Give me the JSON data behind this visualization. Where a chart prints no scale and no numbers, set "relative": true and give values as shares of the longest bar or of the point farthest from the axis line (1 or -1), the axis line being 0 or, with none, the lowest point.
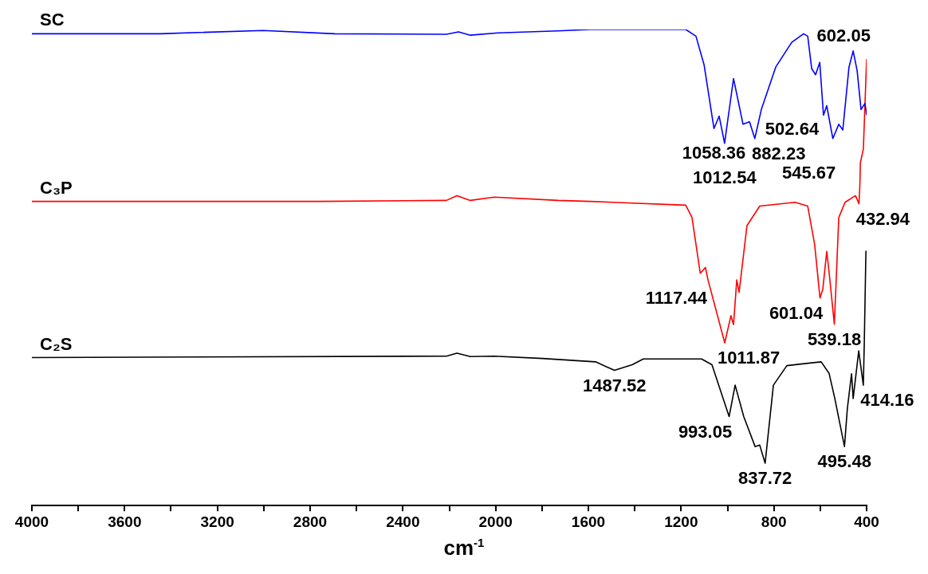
{
  "chart_data": {
    "type": "line",
    "relative": true,
    "xlabel": "cm$^{-1}$",
    "xlim": [
      4000,
      400
    ],
    "xticks": [
      4000,
      {
        "value": 3800,
        "label": null
      },
      3600,
      {
        "value": 3400,
        "label": null
      },
      3200,
      {
        "value": 3000,
        "label": null
      },
      2800,
      {
        "value": 2600,
        "label": null
      },
      2400,
      {
        "value": 2200,
        "label": null
      },
      2000,
      {
        "value": 1800,
        "label": null
      },
      1600,
      {
        "value": 1400,
        "label": null
      },
      1200,
      {
        "value": 1000,
        "label": null
      },
      800,
      {
        "value": 600,
        "label": null
      },
      400
    ],
    "grid": false,
    "legend": false,
    "marker": "none",
    "line_style": "solid",
    "series": [
      {
        "name": "SC",
        "color": "#0000ff",
        "x": [
          4000,
          3450,
          3003,
          2693,
          2212,
          2160,
          2109,
          1989,
          1731,
          1593,
          1180,
          1136,
          1101,
          1058.36,
          1036,
          1012.54,
          974,
          933,
          905,
          882.23,
          854,
          792,
          723,
          672,
          654,
          637,
          620,
          602.05,
          586,
          572,
          545.67,
          520,
          502.64,
          476,
          458,
          441,
          424,
          407,
          400
        ],
        "values": [
          0.991,
          0.991,
          0.998,
          0.991,
          0.99,
          0.995,
          0.988,
          0.993,
          0.997,
          1,
          1,
          0.986,
          0.926,
          0.792,
          0.818,
          0.761,
          0.897,
          0.801,
          0.806,
          0.771,
          0.832,
          0.921,
          0.973,
          0.991,
          0.986,
          0.918,
          0.905,
          0.931,
          0.82,
          0.84,
          0.771,
          0.801,
          0.789,
          0.921,
          0.955,
          0.914,
          0.832,
          0.845,
          0.82
        ]
      },
      {
        "name": "C₃P",
        "color": "#ff0000",
        "x": [
          4000,
          2762,
          2212,
          2167,
          2109,
          2006,
          1731,
          1593,
          1180,
          1153,
          1117.44,
          1095,
          1084,
          1011.87,
          985,
          974,
          960,
          950,
          916,
          861,
          709,
          654,
          624,
          601.04,
          589,
          572,
          562,
          539.18,
          520,
          493,
          448,
          432.94,
          429,
          427,
          414,
          400
        ],
        "values": [
          0.639,
          0.639,
          0.641,
          0.651,
          0.641,
          0.648,
          0.641,
          0.639,
          0.631,
          0.605,
          0.488,
          0.5,
          0.474,
          0.342,
          0.399,
          0.38,
          0.474,
          0.448,
          0.588,
          0.629,
          0.637,
          0.629,
          0.548,
          0.436,
          0.454,
          0.534,
          0.491,
          0.381,
          0.605,
          0.637,
          0.651,
          0.634,
          0.674,
          0.72,
          0.749,
          0.938
        ]
      },
      {
        "name": "C₂S",
        "color": "#000000",
        "x": [
          4000,
          2212,
          2167,
          2109,
          2006,
          1799,
          1569,
          1487.52,
          1411,
          1363,
          1112,
          1067,
          993.05,
          967,
          930,
          881,
          861,
          837.72,
          802,
          744,
          596,
          562,
          538,
          495.48,
          483,
          465,
          458,
          434,
          414.16,
          410,
          403,
          400
        ],
        "values": [
          0.311,
          0.314,
          0.32,
          0.313,
          0.314,
          0.309,
          0.302,
          0.284,
          0.296,
          0.308,
          0.308,
          0.296,
          0.187,
          0.253,
          0.187,
          0.124,
          0.127,
          0.089,
          0.253,
          0.294,
          0.302,
          0.278,
          0.227,
          0.124,
          0.204,
          0.277,
          0.225,
          0.325,
          0.253,
          0.342,
          0.534,
          0.534
        ]
      }
    ],
    "annotations": [
      {
        "text": "1058.36",
        "x": 1058.36,
        "y": 0.792
      },
      {
        "text": "1012.54",
        "x": 1012.54,
        "y": 0.761
      },
      {
        "text": "882.23",
        "x": 882.23,
        "y": 0.771
      },
      {
        "text": "602.05",
        "x": 602.05,
        "y": 0.931
      },
      {
        "text": "545.67",
        "x": 545.67,
        "y": 0.771
      },
      {
        "text": "502.64",
        "x": 502.64,
        "y": 0.789
      },
      {
        "text": "1117.44",
        "x": 1117.44,
        "y": 0.488
      },
      {
        "text": "1011.87",
        "x": 1011.87,
        "y": 0.342
      },
      {
        "text": "601.04",
        "x": 601.04,
        "y": 0.436
      },
      {
        "text": "539.18",
        "x": 539.18,
        "y": 0.381
      },
      {
        "text": "432.94",
        "x": 432.94,
        "y": 0.634
      },
      {
        "text": "1487.52",
        "x": 1487.52,
        "y": 0.284
      },
      {
        "text": "993.05",
        "x": 993.05,
        "y": 0.187
      },
      {
        "text": "837.72",
        "x": 837.72,
        "y": 0.089
      },
      {
        "text": "495.48",
        "x": 495.48,
        "y": 0.124
      },
      {
        "text": "414.16",
        "x": 414.16,
        "y": 0.253
      }
    ]
  }
}
